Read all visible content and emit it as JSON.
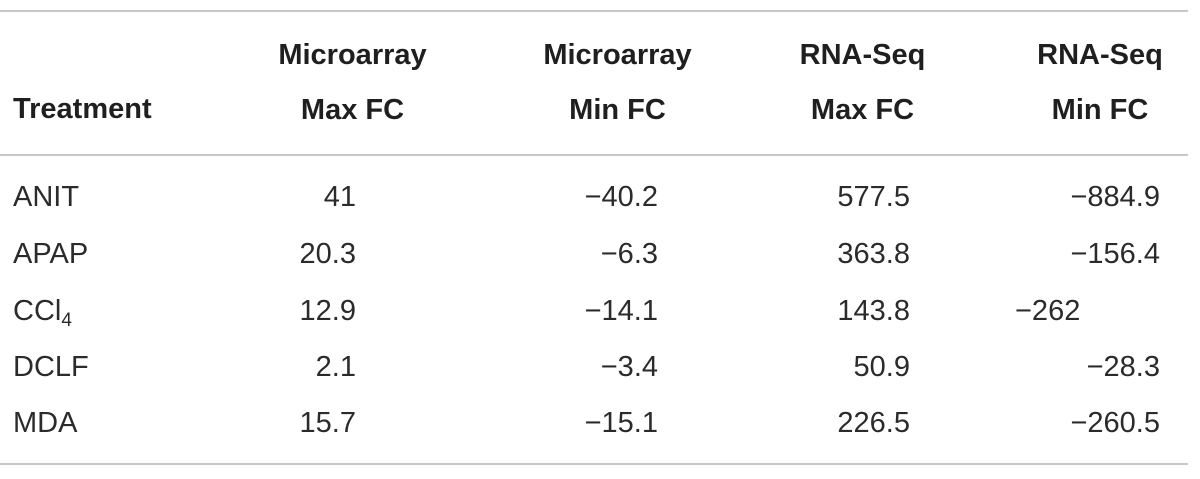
{
  "table": {
    "headers": [
      {
        "lines": [
          "Treatment"
        ]
      },
      {
        "lines": [
          "Microarray",
          "Max FC"
        ]
      },
      {
        "lines": [
          "Microarray",
          "Min FC"
        ]
      },
      {
        "lines": [
          "RNA-Seq",
          "Max FC"
        ]
      },
      {
        "lines": [
          "RNA-Seq",
          "Min FC"
        ]
      }
    ],
    "rows": [
      {
        "treatment": "ANIT",
        "treatment_sub": "",
        "micro_max": "41",
        "micro_min": "−40.2",
        "rna_max": "577.5",
        "rna_min": "−884.9"
      },
      {
        "treatment": "APAP",
        "treatment_sub": "",
        "micro_max": "20.3",
        "micro_min": "−6.3",
        "rna_max": "363.8",
        "rna_min": "−156.4"
      },
      {
        "treatment": "CCl",
        "treatment_sub": "4",
        "micro_max": "12.9",
        "micro_min": "−14.1",
        "rna_max": "143.8",
        "rna_min": "−262"
      },
      {
        "treatment": "DCLF",
        "treatment_sub": "",
        "micro_max": "2.1",
        "micro_min": "−3.4",
        "rna_max": "50.9",
        "rna_min": "−28.3"
      },
      {
        "treatment": "MDA",
        "treatment_sub": "",
        "micro_max": "15.7",
        "micro_min": "−15.1",
        "rna_max": "226.5",
        "rna_min": "−260.5"
      }
    ]
  }
}
